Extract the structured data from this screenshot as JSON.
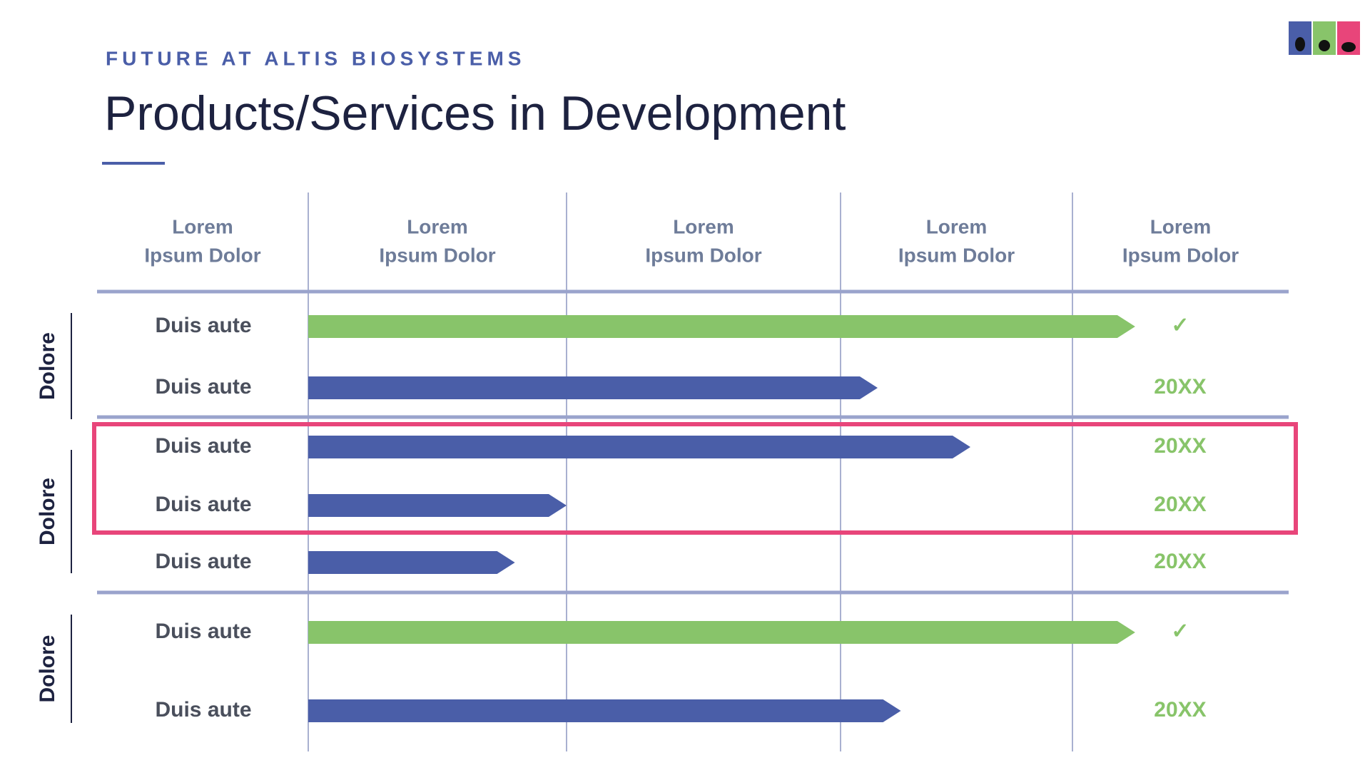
{
  "header": {
    "eyebrow": "FUTURE AT ALTIS BIOSYSTEMS",
    "title": "Products/Services in Development"
  },
  "columns": [
    {
      "line1": "Lorem",
      "line2": "Ipsum Dolor"
    },
    {
      "line1": "Lorem",
      "line2": "Ipsum Dolor"
    },
    {
      "line1": "Lorem",
      "line2": "Ipsum Dolor"
    },
    {
      "line1": "Lorem",
      "line2": "Ipsum Dolor"
    },
    {
      "line1": "Lorem",
      "line2": "Ipsum Dolor"
    }
  ],
  "groups": [
    {
      "label": "Dolore",
      "rows": [
        {
          "label": "Duis aute",
          "status": "✓",
          "color": "#88c46a",
          "progress": 3.29
        },
        {
          "label": "Duis aute",
          "status": "20XX",
          "color": "#4a5ea8",
          "progress": 2.16
        }
      ]
    },
    {
      "label": "Dolore",
      "rows": [
        {
          "label": "Duis aute",
          "status": "20XX",
          "color": "#4a5ea8",
          "progress": 2.56
        },
        {
          "label": "Duis aute",
          "status": "20XX",
          "color": "#4a5ea8",
          "progress": 1.0
        },
        {
          "label": "Duis aute",
          "status": "20XX",
          "color": "#4a5ea8",
          "progress": 0.8
        }
      ]
    },
    {
      "label": "Dolore",
      "rows": [
        {
          "label": "Duis aute",
          "status": "✓",
          "color": "#88c46a",
          "progress": 3.29
        },
        {
          "label": "Duis aute",
          "status": "20XX",
          "color": "#4a5ea8",
          "progress": 2.26
        }
      ]
    }
  ]
}
